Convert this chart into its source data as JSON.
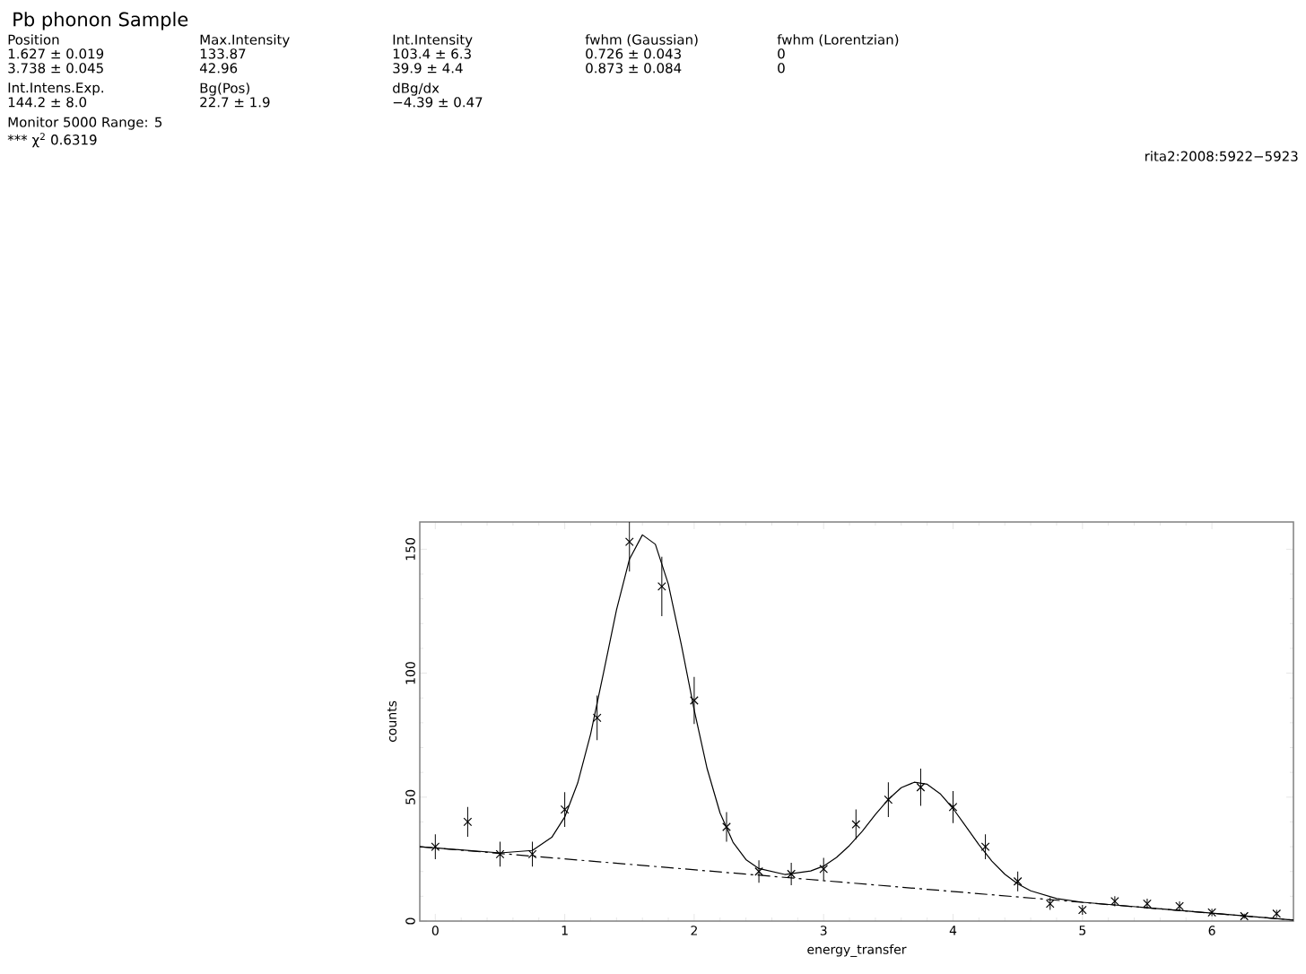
{
  "chart_data": {
    "type": "scatter",
    "title": "Pb phonon Sample",
    "xlabel": "energy_transfer",
    "ylabel": "counts",
    "xlim": [
      -0.12,
      6.63
    ],
    "ylim": [
      0,
      161
    ],
    "xticks": [
      0,
      1,
      2,
      3,
      4,
      5,
      6
    ],
    "yticks": [
      0,
      50,
      100,
      150
    ],
    "grid": false,
    "series": [
      {
        "color": "#000000",
        "marker": "cross",
        "x": [
          0,
          0.25,
          0.5,
          0.75,
          1,
          1.25,
          1.5,
          1.75,
          2,
          2.25,
          2.5,
          2.75,
          3,
          3.25,
          3.5,
          3.75,
          4,
          4.25,
          4.5,
          4.75,
          5,
          5.25,
          5.5,
          5.75,
          6,
          6.25,
          6.5
        ],
        "values": [
          30,
          40,
          27,
          27,
          45,
          82,
          153,
          135,
          89,
          38,
          20,
          19,
          21,
          39,
          49,
          54,
          46,
          30,
          16,
          7,
          4.5,
          8,
          7,
          6,
          3.5,
          2,
          3
        ],
        "errors": [
          5,
          6,
          5,
          5,
          7,
          9,
          12,
          12,
          9.5,
          6,
          4.5,
          4.5,
          4.5,
          6,
          7,
          7.5,
          6.5,
          5,
          4,
          2.5,
          2,
          2,
          2,
          2,
          1.5,
          1,
          1.5
        ]
      },
      {
        "type": "line",
        "color": "#000000",
        "marker": "none",
        "line_style": "solid",
        "x": [
          -0.12,
          0,
          0.5,
          0.75,
          0.9,
          1.0,
          1.1,
          1.2,
          1.3,
          1.4,
          1.5,
          1.6,
          1.7,
          1.8,
          1.9,
          2.0,
          2.1,
          2.2,
          2.3,
          2.4,
          2.5,
          2.7,
          2.9,
          3.0,
          3.1,
          3.2,
          3.3,
          3.4,
          3.5,
          3.6,
          3.7,
          3.8,
          3.9,
          4.0,
          4.1,
          4.2,
          4.3,
          4.4,
          4.5,
          4.6,
          4.8,
          5.0,
          5.5,
          6.0,
          6.63
        ],
        "values": [
          30,
          29.5,
          27.5,
          28.5,
          33.8,
          42,
          55.7,
          75.5,
          100.3,
          125.6,
          146,
          155.8,
          152,
          136,
          111.7,
          85.2,
          61.5,
          43.6,
          31.8,
          24.8,
          21.2,
          18.8,
          20.2,
          22.2,
          25.7,
          30.5,
          36.3,
          43,
          49.1,
          53.8,
          56,
          55.2,
          51.4,
          45.4,
          38.1,
          30.8,
          24.2,
          18.9,
          15,
          12.2,
          9.1,
          7.6,
          5.4,
          3.2,
          0.4
        ]
      },
      {
        "type": "line",
        "color": "#000000",
        "marker": "none",
        "line_style": "dashed",
        "x": [
          -0.12,
          6.63
        ],
        "values": [
          30,
          0.4
        ]
      }
    ],
    "annotations": [
      "Position",
      "Max.Intensity",
      "Int.Intensity",
      "fwhm (Gaussian)",
      "fwhm (Lorentzian)",
      "1.627 ± 0.019",
      "133.87",
      "103.4 ± 6.3",
      "0.726 ± 0.043",
      "0",
      "3.738 ± 0.045",
      "42.96",
      "39.9 ± 4.4",
      "0.873 ± 0.084",
      "0",
      "Int.Intens.Exp.",
      "Bg(Pos)",
      "dBg/dx",
      "144.2 ± 8.0",
      "22.7 ± 1.9",
      "−4.39 ± 0.47",
      "Monitor  5000   Range:  5",
      "*** χ$^{2}$ 0.6319",
      "rita2:2008:5922−5923"
    ]
  }
}
